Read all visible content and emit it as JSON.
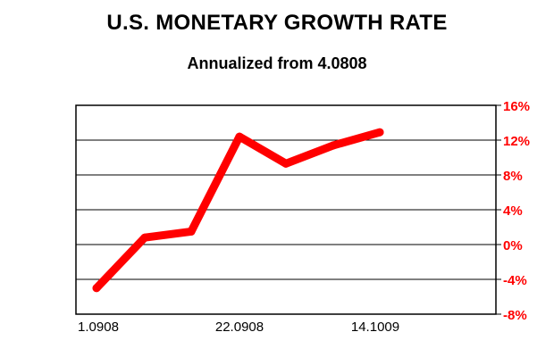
{
  "chart_data": {
    "type": "line",
    "title": "U.S. MONETARY GROWTH RATE",
    "subtitle": "Annualized from 4.0808",
    "x_tick_labels": [
      "1.0908",
      "22.0908",
      "14.1009"
    ],
    "y_tick_labels": [
      "-8%",
      "-4%",
      "0%",
      "4%",
      "8%",
      "12%",
      "16%"
    ],
    "ylim": [
      -8,
      16
    ],
    "grid": "horizontal",
    "y_axis_side": "right",
    "line_color": "#ff0000",
    "series": [
      {
        "x": [
          0,
          1,
          2,
          3,
          4,
          5,
          6
        ],
        "values": [
          -5.0,
          0.8,
          1.5,
          12.4,
          9.3,
          11.4,
          12.9
        ]
      }
    ]
  }
}
